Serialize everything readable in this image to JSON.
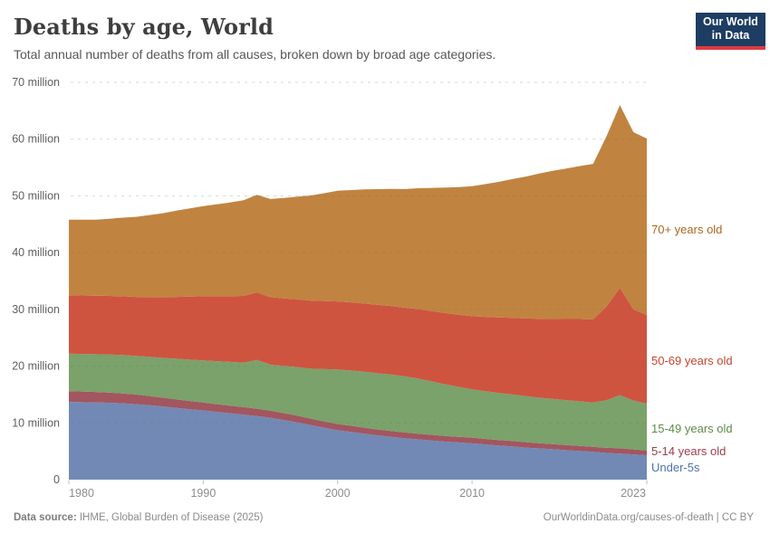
{
  "header": {
    "title": "Deaths by age, World",
    "subtitle": "Total annual number of deaths from all causes, broken down by broad age categories.",
    "logo": {
      "line1": "Our World",
      "line2": "in Data",
      "bg_color": "#1d3d63",
      "accent_color": "#dc3b41"
    }
  },
  "footer": {
    "source_label": "Data source:",
    "source_value": " IHME, Global Burden of Disease (2025)",
    "credit": "OurWorldinData.org/causes-of-death | CC BY"
  },
  "chart_data": {
    "type": "area",
    "stacked": true,
    "grid": "dashed",
    "unit": "million deaths",
    "xlim": [
      1980,
      2023
    ],
    "ylim": [
      0,
      70
    ],
    "legend_position": "right-of-plot",
    "x": [
      1980,
      1981,
      1982,
      1983,
      1984,
      1985,
      1986,
      1987,
      1988,
      1989,
      1990,
      1991,
      1992,
      1993,
      1994,
      1995,
      1996,
      1997,
      1998,
      1999,
      2000,
      2001,
      2002,
      2003,
      2004,
      2005,
      2006,
      2007,
      2008,
      2009,
      2010,
      2011,
      2012,
      2013,
      2014,
      2015,
      2016,
      2017,
      2018,
      2019,
      2020,
      2021,
      2022,
      2023
    ],
    "series": [
      {
        "name": "Under-5s",
        "fill": "#7289b5",
        "label_color": "#4c73b0",
        "values": [
          13.7,
          13.65,
          13.6,
          13.55,
          13.45,
          13.3,
          13.1,
          12.9,
          12.65,
          12.4,
          12.2,
          11.95,
          11.7,
          11.45,
          11.2,
          10.9,
          10.5,
          10.1,
          9.6,
          9.15,
          8.7,
          8.4,
          8.1,
          7.8,
          7.55,
          7.3,
          7.1,
          6.9,
          6.7,
          6.55,
          6.4,
          6.2,
          6.0,
          5.85,
          5.65,
          5.5,
          5.35,
          5.2,
          5.05,
          4.9,
          4.7,
          4.6,
          4.45,
          4.3
        ]
      },
      {
        "name": "5-14 years old",
        "fill": "#a25660",
        "label_color": "#a03e4c",
        "values": [
          1.9,
          1.88,
          1.85,
          1.8,
          1.75,
          1.7,
          1.63,
          1.55,
          1.5,
          1.45,
          1.4,
          1.37,
          1.34,
          1.32,
          1.3,
          1.25,
          1.22,
          1.18,
          1.15,
          1.12,
          1.1,
          1.08,
          1.06,
          1.04,
          1.02,
          1.0,
          1.0,
          1.0,
          1.0,
          1.0,
          1.0,
          0.98,
          0.97,
          0.96,
          0.95,
          0.93,
          0.92,
          0.91,
          0.9,
          0.88,
          0.9,
          0.95,
          0.88,
          0.85
        ]
      },
      {
        "name": "15-49 years old",
        "fill": "#7aa26a",
        "label_color": "#5f8c48",
        "values": [
          6.6,
          6.62,
          6.65,
          6.7,
          6.75,
          6.8,
          6.9,
          7.0,
          7.15,
          7.3,
          7.4,
          7.55,
          7.7,
          7.85,
          8.6,
          8.1,
          8.3,
          8.55,
          8.8,
          9.2,
          9.6,
          9.75,
          9.85,
          9.9,
          9.95,
          9.9,
          9.7,
          9.4,
          9.1,
          8.8,
          8.5,
          8.4,
          8.3,
          8.2,
          8.1,
          8.0,
          7.95,
          7.9,
          7.85,
          7.8,
          8.4,
          9.35,
          8.6,
          8.25
        ]
      },
      {
        "name": "50-69 years old",
        "fill": "#ce5440",
        "label_color": "#c5452f",
        "values": [
          10.3,
          10.3,
          10.3,
          10.32,
          10.36,
          10.4,
          10.55,
          10.7,
          10.9,
          11.1,
          11.3,
          11.45,
          11.6,
          11.75,
          11.9,
          11.9,
          11.92,
          11.95,
          11.97,
          12.0,
          12.0,
          12.0,
          12.02,
          12.05,
          12.07,
          12.1,
          12.25,
          12.4,
          12.55,
          12.7,
          12.9,
          13.1,
          13.3,
          13.5,
          13.7,
          13.9,
          14.1,
          14.3,
          14.5,
          14.65,
          16.5,
          18.9,
          16.1,
          15.6
        ]
      },
      {
        "name": "70+ years old",
        "fill": "#c08440",
        "label_color": "#b0671c",
        "values": [
          13.3,
          13.35,
          13.4,
          13.6,
          13.85,
          14.1,
          14.45,
          14.8,
          15.2,
          15.55,
          15.9,
          16.2,
          16.5,
          16.85,
          17.2,
          17.3,
          17.7,
          18.1,
          18.55,
          19.0,
          19.5,
          19.8,
          20.1,
          20.4,
          20.65,
          20.9,
          21.3,
          21.7,
          22.1,
          22.5,
          22.9,
          23.4,
          23.9,
          24.45,
          25.0,
          25.6,
          26.1,
          26.5,
          26.95,
          27.4,
          30.0,
          32.2,
          31.2,
          31.1
        ]
      }
    ],
    "y_ticks": [
      {
        "value": 0,
        "label": "0"
      },
      {
        "value": 10,
        "label": "10 million"
      },
      {
        "value": 20,
        "label": "20 million"
      },
      {
        "value": 30,
        "label": "30 million"
      },
      {
        "value": 40,
        "label": "40 million"
      },
      {
        "value": 50,
        "label": "50 million"
      },
      {
        "value": 60,
        "label": "60 million"
      },
      {
        "value": 70,
        "label": "70 million"
      }
    ],
    "x_ticks": [
      {
        "value": 1980,
        "label": "1980"
      },
      {
        "value": 1990,
        "label": "1990"
      },
      {
        "value": 2000,
        "label": "2000"
      },
      {
        "value": 2010,
        "label": "2010"
      },
      {
        "value": 2023,
        "label": "2023"
      }
    ]
  }
}
